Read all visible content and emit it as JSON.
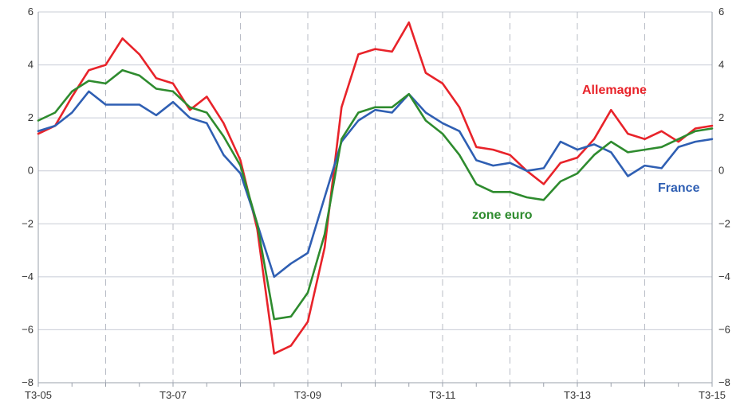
{
  "chart_data": {
    "type": "line",
    "title": "",
    "xlabel": "",
    "ylabel": "",
    "ylim": [
      -8,
      6
    ],
    "yticks": [
      -8,
      -6,
      -4,
      -2,
      0,
      2,
      4,
      6
    ],
    "ytick_labels_left": [
      "−8",
      "−6",
      "−4",
      "−2",
      "0",
      "2",
      "4",
      "6"
    ],
    "ytick_labels_right": [
      "−8",
      "−6",
      "−4",
      "−2",
      "0",
      "2",
      "4",
      "6"
    ],
    "x": [
      "T3-05",
      "T4-05",
      "T1-06",
      "T2-06",
      "T3-06",
      "T4-06",
      "T1-07",
      "T2-07",
      "T3-07",
      "T4-07",
      "T1-08",
      "T2-08",
      "T3-08",
      "T4-08",
      "T1-09",
      "T2-09",
      "T3-09",
      "T4-09",
      "T1-10",
      "T2-10",
      "T3-10",
      "T4-10",
      "T1-11",
      "T2-11",
      "T3-11",
      "T4-11",
      "T1-12",
      "T2-12",
      "T3-12",
      "T4-12",
      "T1-13",
      "T2-13",
      "T3-13",
      "T4-13",
      "T1-14",
      "T2-14",
      "T3-14",
      "T4-14",
      "T1-15",
      "T2-15",
      "T3-15"
    ],
    "xtick_labels": [
      "T3-05",
      "T3-07",
      "T3-09",
      "T3-11",
      "T3-13",
      "T3-15"
    ],
    "xtick_positions": [
      "T3-05",
      "T3-07",
      "T3-09",
      "T3-11",
      "T3-13",
      "T3-15"
    ],
    "grid": {
      "horizontal": true,
      "vertical_dashed": true
    },
    "series": [
      {
        "name": "Allemagne",
        "color": "#e8232a",
        "values": [
          1.4,
          1.7,
          2.8,
          3.8,
          4.0,
          5.0,
          4.4,
          3.5,
          3.3,
          2.3,
          2.8,
          1.8,
          0.4,
          -2.2,
          -6.9,
          -6.6,
          -5.7,
          -2.9,
          2.4,
          4.4,
          4.6,
          4.5,
          5.6,
          3.7,
          3.3,
          2.4,
          0.9,
          0.8,
          0.6,
          0.0,
          -0.5,
          0.3,
          0.5,
          1.2,
          2.3,
          1.4,
          1.2,
          1.5,
          1.1,
          1.6,
          1.7
        ]
      },
      {
        "name": "France",
        "color": "#2f5fb3",
        "values": [
          1.5,
          1.7,
          2.2,
          3.0,
          2.5,
          2.5,
          2.5,
          2.1,
          2.6,
          2.0,
          1.8,
          0.6,
          -0.1,
          -2.0,
          -4.0,
          -3.5,
          -3.1,
          -1.0,
          1.1,
          1.9,
          2.3,
          2.2,
          2.9,
          2.2,
          1.8,
          1.5,
          0.4,
          0.2,
          0.3,
          0.0,
          0.1,
          1.1,
          0.8,
          1.0,
          0.7,
          -0.2,
          0.2,
          0.1,
          0.9,
          1.1,
          1.2
        ]
      },
      {
        "name": "zone euro",
        "color": "#2e8b2e",
        "values": [
          1.9,
          2.2,
          3.0,
          3.4,
          3.3,
          3.8,
          3.6,
          3.1,
          3.0,
          2.4,
          2.2,
          1.3,
          0.2,
          -2.0,
          -5.6,
          -5.5,
          -4.6,
          -2.4,
          1.2,
          2.2,
          2.4,
          2.4,
          2.9,
          1.9,
          1.4,
          0.6,
          -0.5,
          -0.8,
          -0.8,
          -1.0,
          -1.1,
          -0.4,
          -0.1,
          0.6,
          1.1,
          0.7,
          0.8,
          0.9,
          1.2,
          1.5,
          1.6
        ]
      }
    ],
    "annotations": [
      {
        "text": "Allemagne",
        "series": "Allemagne"
      },
      {
        "text": "France",
        "series": "France"
      },
      {
        "text": "zone euro",
        "series": "zone euro"
      }
    ]
  }
}
